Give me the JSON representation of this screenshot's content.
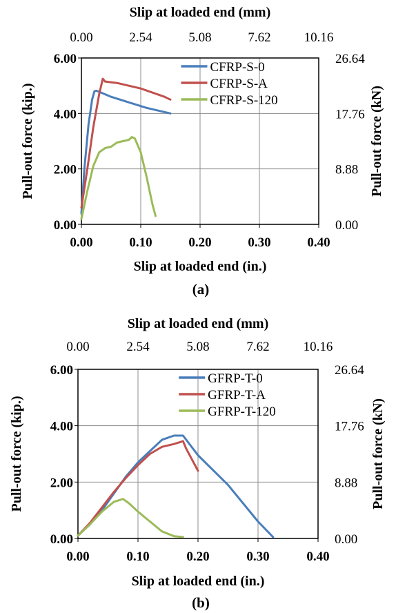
{
  "chart_data": [
    {
      "type": "line",
      "panel_label": "(a)",
      "xlabel": "Slip at loaded  end (in.)",
      "ylabel": "Pull-out force (kip.)",
      "x2label": "Slip at loaded  end (mm)",
      "y2label": "Pull-out force (kN)",
      "xlim": [
        0,
        0.4
      ],
      "ylim": [
        0,
        6
      ],
      "x_ticks": [
        "0.00",
        "0.10",
        "0.20",
        "0.30",
        "0.40"
      ],
      "y_ticks": [
        "0.00",
        "2.00",
        "4.00",
        "6.00"
      ],
      "x2_ticks": [
        "0.00",
        "2.54",
        "5.08",
        "7.62",
        "10.16"
      ],
      "y2_ticks": [
        "0.00",
        "8.88",
        "17.76",
        "26.64"
      ],
      "grid": true,
      "legend_position": "top-right",
      "series": [
        {
          "name": "CFRP-S-0",
          "color": "#4a7ebb",
          "x": [
            0,
            0.005,
            0.012,
            0.018,
            0.022,
            0.025,
            0.03,
            0.05,
            0.08,
            0.11,
            0.13,
            0.15
          ],
          "y": [
            0.4,
            2.0,
            3.6,
            4.5,
            4.8,
            4.82,
            4.78,
            4.6,
            4.4,
            4.2,
            4.1,
            4.0
          ]
        },
        {
          "name": "CFRP-S-A",
          "color": "#c0504d",
          "x": [
            0,
            0.01,
            0.02,
            0.03,
            0.036,
            0.04,
            0.06,
            0.08,
            0.1,
            0.12,
            0.14,
            0.15
          ],
          "y": [
            0.6,
            2.0,
            3.5,
            4.7,
            5.25,
            5.15,
            5.1,
            5.0,
            4.9,
            4.75,
            4.6,
            4.5
          ]
        },
        {
          "name": "CFRP-S-120",
          "color": "#9bbb59",
          "x": [
            0,
            0.01,
            0.02,
            0.03,
            0.04,
            0.05,
            0.06,
            0.07,
            0.08,
            0.085,
            0.09,
            0.1,
            0.11,
            0.12,
            0.125
          ],
          "y": [
            0.2,
            1.2,
            2.1,
            2.6,
            2.75,
            2.8,
            2.95,
            3.0,
            3.05,
            3.15,
            3.1,
            2.6,
            1.7,
            0.7,
            0.3
          ]
        }
      ]
    },
    {
      "type": "line",
      "panel_label": "(b)",
      "xlabel": "Slip at loaded  end (in.)",
      "ylabel": "Pull-out force (kip.)",
      "x2label": "Slip at loaded  end (mm)",
      "y2label": "Pull-out force (kN)",
      "xlim": [
        0,
        0.4
      ],
      "ylim": [
        0,
        6
      ],
      "x_ticks": [
        "0.00",
        "0.10",
        "0.20",
        "0.30",
        "0.40"
      ],
      "y_ticks": [
        "0.00",
        "2.00",
        "4.00",
        "6.00"
      ],
      "x2_ticks": [
        "0.00",
        "2.54",
        "5.08",
        "7.62",
        "10.16"
      ],
      "y2_ticks": [
        "0.00",
        "8.88",
        "17.76",
        "26.64"
      ],
      "grid": true,
      "legend_position": "top-right",
      "series": [
        {
          "name": "GFRP-T-0",
          "color": "#4a7ebb",
          "x": [
            0,
            0.02,
            0.04,
            0.06,
            0.08,
            0.1,
            0.12,
            0.14,
            0.16,
            0.175,
            0.2,
            0.25,
            0.3,
            0.325
          ],
          "y": [
            0.1,
            0.5,
            1.0,
            1.6,
            2.2,
            2.7,
            3.1,
            3.5,
            3.65,
            3.65,
            2.95,
            1.9,
            0.6,
            0.05
          ]
        },
        {
          "name": "GFRP-T-A",
          "color": "#c0504d",
          "x": [
            0,
            0.02,
            0.04,
            0.06,
            0.08,
            0.1,
            0.12,
            0.14,
            0.16,
            0.175,
            0.18,
            0.19,
            0.2
          ],
          "y": [
            0.1,
            0.55,
            1.1,
            1.65,
            2.15,
            2.6,
            3.0,
            3.25,
            3.35,
            3.45,
            3.2,
            2.8,
            2.4
          ]
        },
        {
          "name": "GFRP-T-120",
          "color": "#9bbb59",
          "x": [
            0,
            0.02,
            0.04,
            0.06,
            0.075,
            0.085,
            0.1,
            0.12,
            0.14,
            0.16,
            0.175
          ],
          "y": [
            0.1,
            0.5,
            0.95,
            1.3,
            1.4,
            1.25,
            0.95,
            0.6,
            0.25,
            0.08,
            0.05
          ]
        }
      ]
    }
  ]
}
